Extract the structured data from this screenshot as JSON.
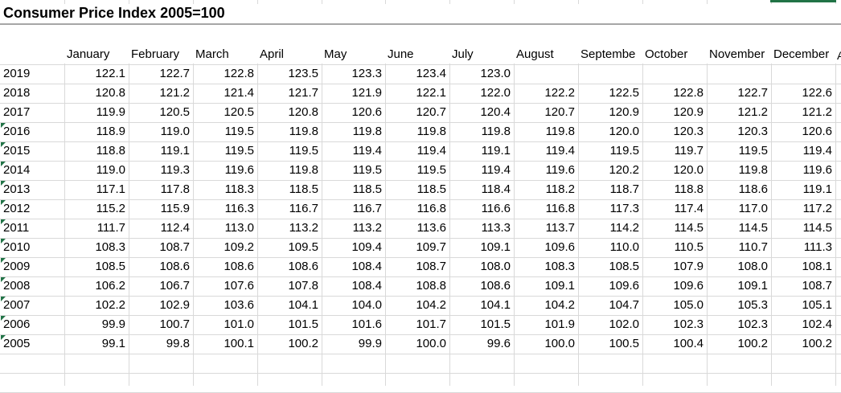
{
  "sheet": {
    "title": "Consumer Price Index 2005=100",
    "overflow_letter": "A",
    "overflow_letter_small": "A"
  },
  "months": [
    "January",
    "February",
    "March",
    "April",
    "May",
    "June",
    "July",
    "August",
    "Septembe",
    "October",
    "November",
    "December"
  ],
  "years": [
    "2019",
    "2018",
    "2017",
    "2016",
    "2015",
    "2014",
    "2013",
    "2012",
    "2011",
    "2010",
    "2009",
    "2008",
    "2007",
    "2006",
    "2005"
  ],
  "text_marker_rows": [
    3,
    4,
    5,
    6,
    7,
    8,
    9,
    10,
    11,
    12,
    13,
    14
  ],
  "values": [
    [
      "122.1",
      "122.7",
      "122.8",
      "123.5",
      "123.3",
      "123.4",
      "123.0",
      "",
      "",
      "",
      "",
      ""
    ],
    [
      "120.8",
      "121.2",
      "121.4",
      "121.7",
      "121.9",
      "122.1",
      "122.0",
      "122.2",
      "122.5",
      "122.8",
      "122.7",
      "122.6"
    ],
    [
      "119.9",
      "120.5",
      "120.5",
      "120.8",
      "120.6",
      "120.7",
      "120.4",
      "120.7",
      "120.9",
      "120.9",
      "121.2",
      "121.2"
    ],
    [
      "118.9",
      "119.0",
      "119.5",
      "119.8",
      "119.8",
      "119.8",
      "119.8",
      "119.8",
      "120.0",
      "120.3",
      "120.3",
      "120.6"
    ],
    [
      "118.8",
      "119.1",
      "119.5",
      "119.5",
      "119.4",
      "119.4",
      "119.1",
      "119.4",
      "119.5",
      "119.7",
      "119.5",
      "119.4"
    ],
    [
      "119.0",
      "119.3",
      "119.6",
      "119.8",
      "119.5",
      "119.5",
      "119.4",
      "119.6",
      "120.2",
      "120.0",
      "119.8",
      "119.6"
    ],
    [
      "117.1",
      "117.8",
      "118.3",
      "118.5",
      "118.5",
      "118.5",
      "118.4",
      "118.2",
      "118.7",
      "118.8",
      "118.6",
      "119.1"
    ],
    [
      "115.2",
      "115.9",
      "116.3",
      "116.7",
      "116.7",
      "116.8",
      "116.6",
      "116.8",
      "117.3",
      "117.4",
      "117.0",
      "117.2"
    ],
    [
      "111.7",
      "112.4",
      "113.0",
      "113.2",
      "113.2",
      "113.6",
      "113.3",
      "113.7",
      "114.2",
      "114.5",
      "114.5",
      "114.5"
    ],
    [
      "108.3",
      "108.7",
      "109.2",
      "109.5",
      "109.4",
      "109.7",
      "109.1",
      "109.6",
      "110.0",
      "110.5",
      "110.7",
      "111.3"
    ],
    [
      "108.5",
      "108.6",
      "108.6",
      "108.6",
      "108.4",
      "108.7",
      "108.0",
      "108.3",
      "108.5",
      "107.9",
      "108.0",
      "108.1"
    ],
    [
      "106.2",
      "106.7",
      "107.6",
      "107.8",
      "108.4",
      "108.8",
      "108.6",
      "109.1",
      "109.6",
      "109.6",
      "109.1",
      "108.7"
    ],
    [
      "102.2",
      "102.9",
      "103.6",
      "104.1",
      "104.0",
      "104.2",
      "104.1",
      "104.2",
      "104.7",
      "105.0",
      "105.3",
      "105.1"
    ],
    [
      "99.9",
      "100.7",
      "101.0",
      "101.5",
      "101.6",
      "101.7",
      "101.5",
      "101.9",
      "102.0",
      "102.3",
      "102.3",
      "102.4"
    ],
    [
      "99.1",
      "99.8",
      "100.1",
      "100.2",
      "99.9",
      "100.0",
      "99.6",
      "100.0",
      "100.5",
      "100.4",
      "100.2",
      "100.2"
    ]
  ],
  "colors": {
    "grid": "#d9d9d9",
    "marker_green": "#217346"
  }
}
